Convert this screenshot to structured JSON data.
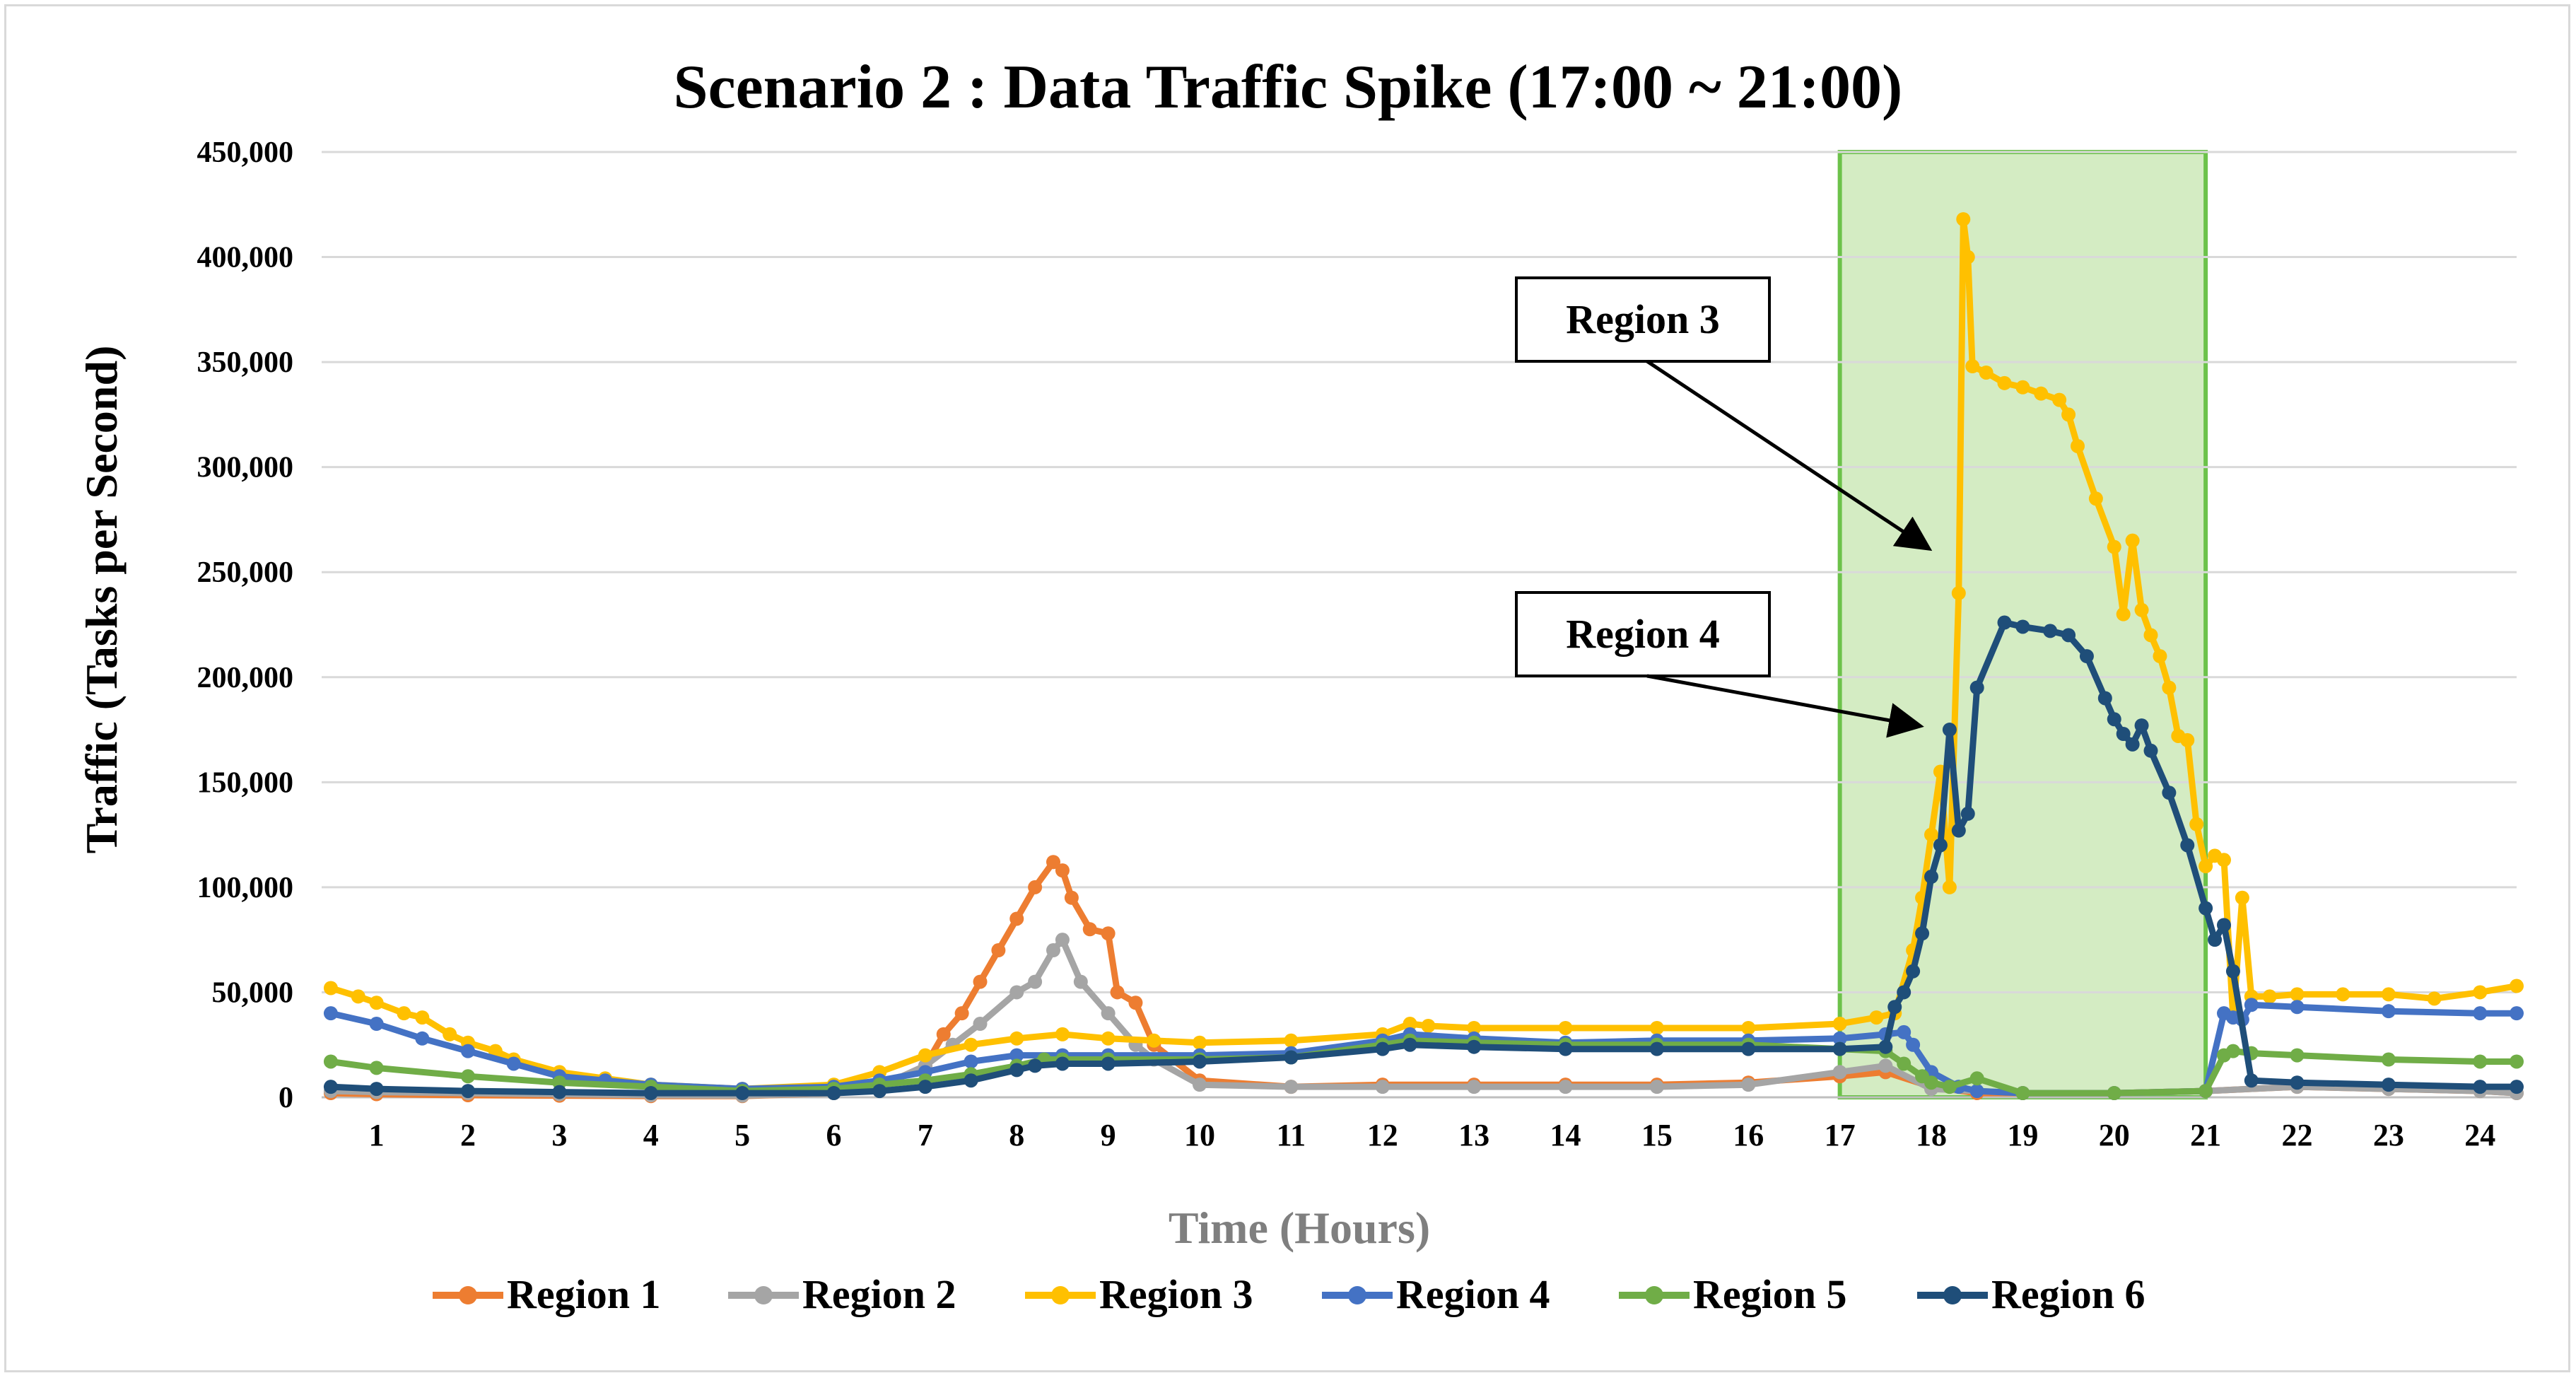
{
  "chart_data": {
    "type": "line",
    "title": "Scenario 2 : Data Traffic Spike (17:00 ~ 21:00)",
    "xlabel": "Time (Hours)",
    "ylabel": "Traffic (Tasks per Second)",
    "xlim": [
      0.4,
      24.4
    ],
    "ylim": [
      0,
      450000
    ],
    "x_ticks": [
      "1",
      "2",
      "3",
      "4",
      "5",
      "6",
      "7",
      "8",
      "9",
      "10",
      "11",
      "12",
      "13",
      "14",
      "15",
      "16",
      "17",
      "18",
      "19",
      "20",
      "21",
      "22",
      "23",
      "24"
    ],
    "y_ticks": [
      "0",
      "50,000",
      "100,000",
      "150,000",
      "200,000",
      "250,000",
      "300,000",
      "350,000",
      "400,000",
      "450,000"
    ],
    "grid": "horizontal",
    "legend_position": "bottom",
    "highlight": {
      "x_start": 17,
      "x_end": 21,
      "fill": "#c9e7b4",
      "stroke": "#6cc24a"
    },
    "annotations": [
      {
        "text": "Region 3",
        "target": [
          18.1,
          262000
        ]
      },
      {
        "text": "Region 4",
        "target": [
          18.0,
          177000
        ]
      }
    ],
    "series": [
      {
        "name": "Region 1",
        "color": "#ed7d31",
        "x": [
          0.5,
          1,
          2,
          3,
          4,
          5,
          6,
          6.5,
          7,
          7.2,
          7.4,
          7.6,
          7.8,
          8,
          8.2,
          8.4,
          8.5,
          8.6,
          8.8,
          9,
          9.1,
          9.3,
          9.5,
          10,
          11,
          12,
          13,
          14,
          15,
          16,
          17,
          17.5,
          18,
          18.5,
          19,
          20,
          21,
          22,
          23,
          24,
          24.4
        ],
        "values": [
          2000,
          1500,
          1000,
          800,
          600,
          600,
          2000,
          5000,
          15000,
          30000,
          40000,
          55000,
          70000,
          85000,
          100000,
          112000,
          108000,
          95000,
          80000,
          78000,
          50000,
          45000,
          25000,
          8000,
          5000,
          6000,
          6000,
          6000,
          6000,
          7000,
          10000,
          12000,
          5000,
          2000,
          2000,
          2000,
          3000,
          5000,
          4000,
          3000,
          2000
        ]
      },
      {
        "name": "Region 2",
        "color": "#a5a5a5",
        "x": [
          0.5,
          1,
          2,
          3,
          4,
          5,
          6,
          6.5,
          7,
          7.3,
          7.6,
          8,
          8.2,
          8.4,
          8.5,
          8.7,
          9,
          9.3,
          9.5,
          10,
          11,
          12,
          13,
          14,
          15,
          16,
          17,
          17.5,
          18,
          19,
          20,
          21,
          22,
          23,
          24,
          24.4
        ],
        "values": [
          3000,
          2500,
          2000,
          1500,
          1000,
          800,
          2000,
          5000,
          15000,
          25000,
          35000,
          50000,
          55000,
          70000,
          75000,
          55000,
          40000,
          25000,
          18000,
          6000,
          5000,
          5000,
          5000,
          5000,
          5000,
          6000,
          12000,
          15000,
          4000,
          2000,
          2000,
          3000,
          5000,
          4000,
          3000,
          2000
        ]
      },
      {
        "name": "Region 3",
        "color": "#ffc000",
        "x": [
          0.5,
          0.8,
          1,
          1.3,
          1.5,
          1.8,
          2,
          2.3,
          2.5,
          3,
          3.5,
          4,
          5,
          6,
          6.5,
          7,
          7.5,
          8,
          8.5,
          9,
          9.5,
          10,
          11,
          12,
          12.3,
          12.5,
          13,
          14,
          15,
          16,
          17,
          17.4,
          17.6,
          17.8,
          17.9,
          18,
          18.1,
          18.2,
          18.3,
          18.35,
          18.4,
          18.45,
          18.6,
          18.8,
          19,
          19.2,
          19.4,
          19.5,
          19.6,
          19.8,
          20,
          20.1,
          20.2,
          20.3,
          20.4,
          20.5,
          20.6,
          20.7,
          20.8,
          20.9,
          21,
          21.1,
          21.2,
          21.3,
          21.4,
          21.5,
          21.7,
          22,
          22.5,
          23,
          23.5,
          24,
          24.4
        ],
        "values": [
          52000,
          48000,
          45000,
          40000,
          38000,
          30000,
          26000,
          22000,
          18000,
          12000,
          9000,
          6000,
          4000,
          6000,
          12000,
          20000,
          25000,
          28000,
          30000,
          28000,
          27000,
          26000,
          27000,
          30000,
          35000,
          34000,
          33000,
          33000,
          33000,
          33000,
          35000,
          38000,
          40000,
          70000,
          95000,
          125000,
          155000,
          100000,
          240000,
          418000,
          400000,
          348000,
          345000,
          340000,
          338000,
          335000,
          332000,
          325000,
          310000,
          285000,
          262000,
          230000,
          265000,
          232000,
          220000,
          210000,
          195000,
          172000,
          170000,
          130000,
          110000,
          115000,
          113000,
          38000,
          95000,
          48000,
          48000,
          49000,
          49000,
          49000,
          47000,
          50000,
          53000
        ]
      },
      {
        "name": "Region 4",
        "color": "#4472c4",
        "x": [
          0.5,
          1,
          1.5,
          2,
          2.5,
          3,
          3.5,
          4,
          5,
          6,
          6.5,
          7,
          7.5,
          8,
          8.5,
          9,
          10,
          11,
          12,
          12.3,
          13,
          14,
          15,
          16,
          17,
          17.5,
          17.7,
          17.8,
          18,
          18.3,
          18.5,
          19,
          20,
          21,
          21.2,
          21.3,
          21.4,
          21.5,
          22,
          23,
          24,
          24.4
        ],
        "values": [
          40000,
          35000,
          28000,
          22000,
          16000,
          10000,
          8000,
          6000,
          4000,
          5000,
          8000,
          12000,
          17000,
          20000,
          20000,
          20000,
          20000,
          21000,
          27000,
          30000,
          28000,
          26000,
          27000,
          27000,
          28000,
          30000,
          31000,
          25000,
          12000,
          5000,
          3000,
          2000,
          2000,
          3000,
          40000,
          38000,
          37000,
          44000,
          43000,
          41000,
          40000,
          40000
        ]
      },
      {
        "name": "Region 5",
        "color": "#70ad47",
        "x": [
          0.5,
          1,
          2,
          3,
          4,
          5,
          6,
          6.5,
          7,
          7.5,
          8,
          8.3,
          8.5,
          9,
          10,
          11,
          12,
          12.3,
          13,
          14,
          15,
          16,
          17,
          17.5,
          17.7,
          17.9,
          18,
          18.2,
          18.5,
          19,
          20,
          21,
          21.2,
          21.3,
          21.5,
          22,
          23,
          24,
          24.4
        ],
        "values": [
          17000,
          14000,
          10000,
          7000,
          5000,
          3000,
          4000,
          6000,
          8000,
          11000,
          15000,
          18000,
          18000,
          18000,
          18000,
          19000,
          25000,
          27000,
          26000,
          25000,
          25000,
          25000,
          23000,
          22000,
          16000,
          10000,
          7000,
          5000,
          9000,
          2000,
          2000,
          3000,
          20000,
          22000,
          21000,
          20000,
          18000,
          17000,
          17000
        ]
      },
      {
        "name": "Region 6",
        "color": "#1f4e79",
        "x": [
          0.5,
          1,
          2,
          3,
          4,
          5,
          6,
          6.5,
          7,
          7.5,
          8,
          8.2,
          8.5,
          9,
          10,
          11,
          12,
          12.3,
          13,
          14,
          15,
          16,
          17,
          17.5,
          17.6,
          17.7,
          17.8,
          17.9,
          18,
          18.1,
          18.2,
          18.3,
          18.4,
          18.5,
          18.8,
          19,
          19.3,
          19.5,
          19.7,
          19.9,
          20,
          20.1,
          20.2,
          20.3,
          20.4,
          20.6,
          20.8,
          21,
          21.1,
          21.2,
          21.3,
          21.5,
          22,
          23,
          24,
          24.4
        ],
        "values": [
          5000,
          4000,
          3000,
          2500,
          2000,
          2000,
          2000,
          3000,
          5000,
          8000,
          13000,
          15000,
          16000,
          16000,
          17000,
          19000,
          23000,
          25000,
          24000,
          23000,
          23000,
          23000,
          23000,
          24000,
          43000,
          50000,
          60000,
          78000,
          105000,
          120000,
          175000,
          127000,
          135000,
          195000,
          226000,
          224000,
          222000,
          220000,
          210000,
          190000,
          180000,
          173000,
          168000,
          177000,
          165000,
          145000,
          120000,
          90000,
          75000,
          82000,
          60000,
          8000,
          7000,
          6000,
          5000,
          5000
        ]
      }
    ]
  }
}
